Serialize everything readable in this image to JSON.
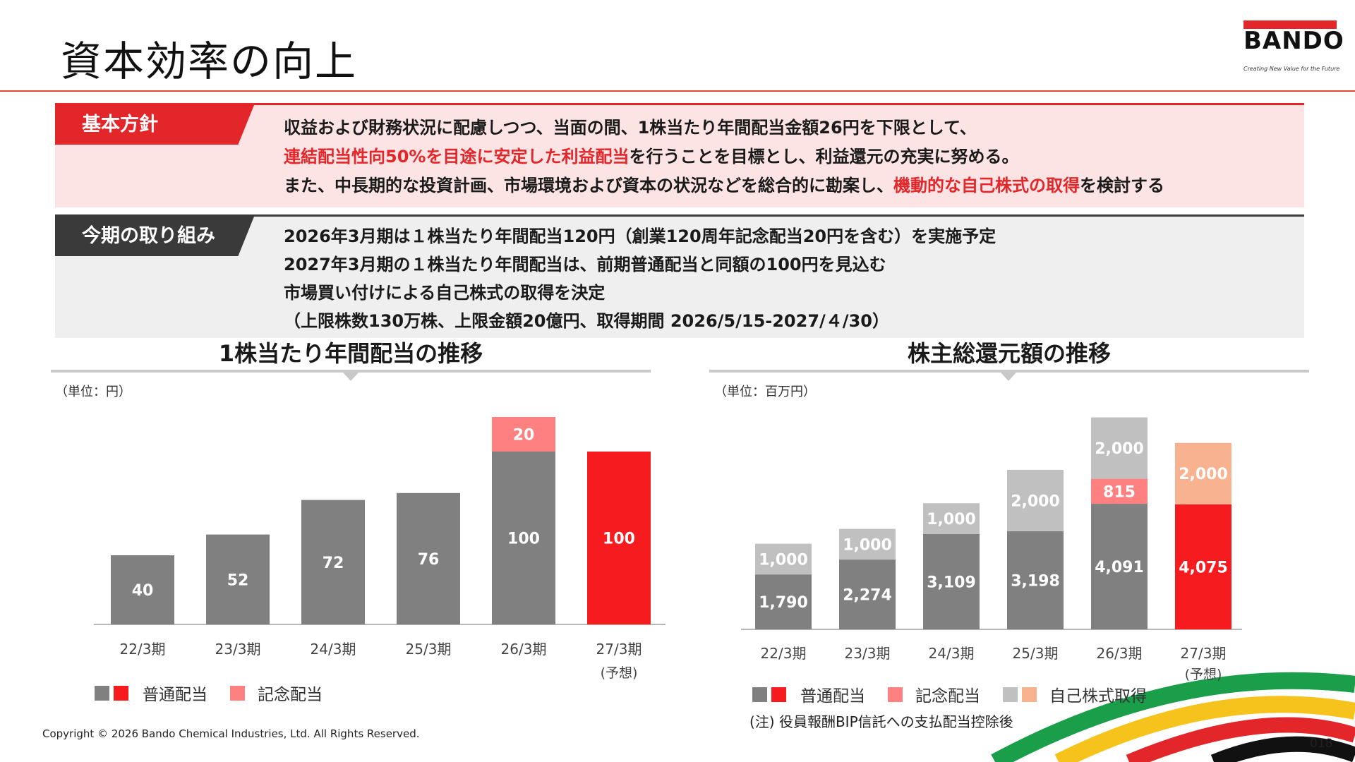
{
  "header": {
    "title": "資本効率の向上",
    "logo_text": "BANDO",
    "logo_tagline": "Creating New Value for the Future"
  },
  "policy": {
    "tab": "基本方針",
    "line1": "収益および財務状況に配慮しつつ、当面の間、1株当たり年間配当金額26円を下限として、",
    "line2_red": "連結配当性向50%を目途に安定した利益配当",
    "line2_rest": "を行うことを目標とし、利益還元の充実に努める。",
    "line3_a": "また、中長期的な投資計画、市場環境および資本の状況などを総合的に勘案し、",
    "line3_red": "機動的な自己株式の取得",
    "line3_b": "を検討する"
  },
  "actions": {
    "tab": "今期の取り組み",
    "lines": [
      "2026年3月期は１株当たり年間配当120円（創業120周年記念配当20円を含む）を実施予定",
      "2027年3月期の１株当たり年間配当は、前期普通配当と同額の100円を見込む",
      "市場買い付けによる自己株式の取得を決定",
      "（上限株数130万株、上限金額20億円、取得期間 2026/5/15-2027/４/30）"
    ]
  },
  "colors": {
    "gray": "#808080",
    "red": "#f51b1f",
    "pink": "#ff8080",
    "lightgray": "#c0c0c0",
    "peach": "#f8b28f"
  },
  "chart_data": [
    {
      "type": "bar",
      "title": "1株当たり年間配当の推移",
      "unit": "（単位：円）",
      "categories": [
        "22/3期",
        "23/3期",
        "24/3期",
        "25/3期",
        "26/3期",
        "27/3期"
      ],
      "category_sublabels": [
        "",
        "",
        "",
        "",
        "",
        "(予想)"
      ],
      "stacked": true,
      "ylim": [
        0,
        120
      ],
      "series": [
        {
          "name": "普通配当",
          "values": [
            40,
            52,
            72,
            76,
            100,
            100
          ]
        },
        {
          "name": "記念配当",
          "values": [
            0,
            0,
            0,
            0,
            20,
            0
          ]
        }
      ],
      "legend": [
        {
          "label": "普通配当"
        },
        {
          "label": "記念配当"
        }
      ]
    },
    {
      "type": "bar",
      "title": "株主総還元額の推移",
      "unit": "（単位：百万円）",
      "categories": [
        "22/3期",
        "23/3期",
        "24/3期",
        "25/3期",
        "26/3期",
        "27/3期"
      ],
      "category_sublabels": [
        "",
        "",
        "",
        "",
        "",
        "(予想)"
      ],
      "stacked": true,
      "ylim": [
        0,
        7000
      ],
      "series": [
        {
          "name": "普通配当",
          "values": [
            1790,
            2274,
            3109,
            3198,
            4091,
            4075
          ],
          "labels": [
            "1,790",
            "2,274",
            "3,109",
            "3,198",
            "4,091",
            "4,075"
          ]
        },
        {
          "name": "記念配当",
          "values": [
            0,
            0,
            0,
            0,
            815,
            0
          ],
          "labels": [
            "",
            "",
            "",
            "",
            "815",
            ""
          ]
        },
        {
          "name": "自己株式取得",
          "values": [
            1000,
            1000,
            1000,
            2000,
            2000,
            2000
          ],
          "labels": [
            "1,000",
            "1,000",
            "1,000",
            "2,000",
            "2,000",
            "2,000"
          ]
        }
      ],
      "legend": [
        {
          "label": "普通配当"
        },
        {
          "label": "記念配当"
        },
        {
          "label": "自己株式取得"
        }
      ],
      "note": "(注) 役員報酬BIP信託への支払配当控除後"
    }
  ],
  "footer": {
    "copyright": "Copyright © 2026 Bando Chemical Industries, Ltd. All Rights Reserved.",
    "page": "018"
  }
}
